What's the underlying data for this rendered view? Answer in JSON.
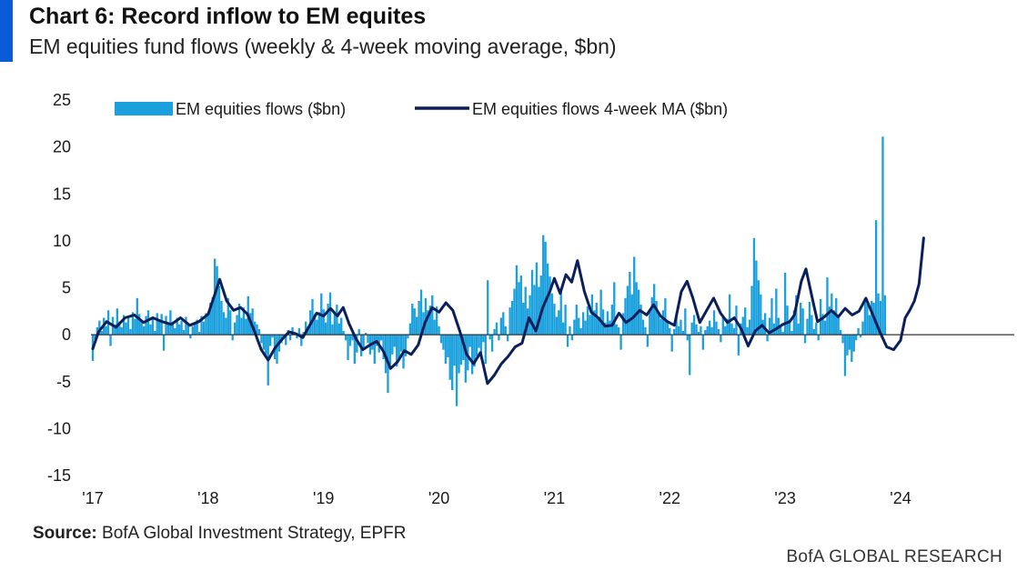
{
  "header": {
    "title": "Chart 6: Record inflow to EM equites",
    "subtitle": "EM equities fund flows (weekly & 4-week moving average, $bn)"
  },
  "footer": {
    "source_label": "Source:",
    "source_text": " BofA Global Investment Strategy, EPFR",
    "brand": "BofA GLOBAL RESEARCH"
  },
  "colors": {
    "accent": "#0a5bd6",
    "bars": "#1aa0dd",
    "line": "#0b1f5c"
  },
  "chart_data": {
    "type": "bar",
    "title": "Chart 6: Record inflow to EM equites",
    "subtitle": "EM equities fund flows (weekly & 4-week moving average, $bn)",
    "ylim": [
      -15,
      25
    ],
    "yticks": [
      25,
      20,
      15,
      10,
      5,
      0,
      -5,
      -10,
      -15
    ],
    "xlim": [
      2017,
      2025
    ],
    "xticks": [
      {
        "value": 2017,
        "label": "'17"
      },
      {
        "value": 2018,
        "label": "'18"
      },
      {
        "value": 2019,
        "label": "'19"
      },
      {
        "value": 2020,
        "label": "'20"
      },
      {
        "value": 2021,
        "label": "'21"
      },
      {
        "value": 2022,
        "label": "'22"
      },
      {
        "value": 2023,
        "label": "'23"
      },
      {
        "value": 2024,
        "label": "'24"
      }
    ],
    "grid": false,
    "legend_position": "top-left",
    "x_start": 2017.0,
    "week_step": 0.01923,
    "series": [
      {
        "name": "EM equities flows ($bn)",
        "kind": "bar",
        "values": [
          -2.8,
          -0.5,
          0.8,
          1.5,
          0.4,
          1.8,
          0.9,
          2.6,
          -1.2,
          1.9,
          1.1,
          2.8,
          1.4,
          0.8,
          2.1,
          1.3,
          1.9,
          0.6,
          2.4,
          1.7,
          3.9,
          2.2,
          1.5,
          0.9,
          2.0,
          2.6,
          1.1,
          1.8,
          0.4,
          2.3,
          1.6,
          2.2,
          -1.7,
          2.0,
          1.2,
          2.6,
          1.4,
          0.7,
          1.8,
          1.1,
          1.5,
          0.5,
          1.9,
          1.2,
          -0.4,
          0.9,
          1.1,
          1.6,
          0.3,
          2.0,
          1.4,
          2.3,
          2.1,
          3.4,
          4.0,
          8.1,
          7.3,
          5.2,
          3.6,
          2.4,
          1.8,
          3.9,
          2.6,
          -0.6,
          1.3,
          2.1,
          3.3,
          1.8,
          2.9,
          1.7,
          4.1,
          2.3,
          2.8,
          1.4,
          1.1,
          0.6,
          -0.9,
          -1.6,
          -2.1,
          -5.4,
          -1.2,
          -0.3,
          -2.6,
          -3.1,
          -1.8,
          -0.9,
          -0.2,
          -1.1,
          0.5,
          -0.6,
          0.8,
          0.2,
          -0.4,
          0.7,
          -1.2,
          0.3,
          1.4,
          0.9,
          2.6,
          3.8,
          2.2,
          1.6,
          2.4,
          4.4,
          2.7,
          1.3,
          3.3,
          4.5,
          1.1,
          2.4,
          3.2,
          1.2,
          1.8,
          0.4,
          -0.6,
          -2.7,
          -1.2,
          -0.6,
          -3.1,
          -1.9,
          0.6,
          -2.3,
          -1.5,
          0.2,
          -0.9,
          -2.1,
          -1.6,
          -3.1,
          -1.2,
          -1.9,
          -0.6,
          -2.6,
          -4.1,
          -6.2,
          -3.2,
          -2.1,
          -1.3,
          -3.4,
          -2.6,
          -1.8,
          -3.6,
          -2.3,
          -0.4,
          1.2,
          3.3,
          2.8,
          1.9,
          3.6,
          4.8,
          2.4,
          3.9,
          2.6,
          3.1,
          4.2,
          1.6,
          3.0,
          0.9,
          -0.9,
          -1.6,
          -3.1,
          -2.4,
          -4.8,
          -5.9,
          -3.3,
          -7.6,
          -4.1,
          -3.2,
          -2.7,
          -5.1,
          -3.8,
          -1.3,
          -4.2,
          -3.4,
          -2.3,
          -1.4,
          -2.6,
          -0.8,
          -3.1,
          5.8,
          -0.5,
          -1.8,
          0.6,
          1.3,
          -0.6,
          1.8,
          2.4,
          0.9,
          -0.7,
          2.9,
          3.6,
          4.9,
          7.4,
          5.6,
          6.3,
          3.4,
          5.1,
          2.8,
          4.2,
          6.9,
          5.3,
          7.7,
          5.1,
          6.3,
          10.6,
          9.9,
          7.6,
          6.2,
          4.4,
          3.3,
          1.9,
          2.6,
          4.9,
          1.3,
          3.2,
          -1.3,
          0.9,
          -0.6,
          1.6,
          3.2,
          1.8,
          0.7,
          2.4,
          1.5,
          3.0,
          2.1,
          4.3,
          2.6,
          3.4,
          1.9,
          4.8,
          2.7,
          1.3,
          2.5,
          1.5,
          3.2,
          5.6,
          1.1,
          0.8,
          -1.6,
          2.3,
          3.9,
          5.2,
          6.7,
          4.3,
          8.3,
          5.6,
          4.8,
          3.2,
          1.6,
          0.8,
          -1.3,
          2.6,
          4.0,
          5.4,
          3.6,
          2.3,
          1.7,
          2.6,
          3.9,
          1.4,
          0.7,
          -1.8,
          0.6,
          2.0,
          0.9,
          1.6,
          0.4,
          2.8,
          -0.6,
          -4.3,
          1.3,
          2.1,
          1.1,
          0.3,
          0.9,
          -1.6,
          0.5,
          0.9,
          1.5,
          0.8,
          2.6,
          1.4,
          0.6,
          -0.8,
          1.9,
          0.9,
          1.7,
          4.3,
          1.2,
          0.7,
          3.1,
          -2.2,
          1.2,
          1.9,
          2.9,
          0.8,
          1.6,
          5.2,
          10.3,
          7.9,
          5.8,
          4.3,
          1.6,
          2.3,
          -0.7,
          1.8,
          3.9,
          1.2,
          4.9,
          1.8,
          0.9,
          0.3,
          6.6,
          3.1,
          1.6,
          0.4,
          2.6,
          4.2,
          1.2,
          3.4,
          2.8,
          -0.9,
          1.7,
          3.5,
          2.1,
          0.6,
          1.3,
          -0.6,
          3.8,
          2.2,
          1.5,
          6.1,
          3.0,
          4.4,
          2.6,
          3.9,
          1.8,
          0.5,
          -0.9,
          -4.4,
          -2.2,
          -1.6,
          -2.9,
          -1.8,
          -0.6,
          0.7,
          -0.3,
          1.4,
          3.9,
          3.4,
          2.1,
          3.6,
          3.4,
          12.2,
          4.4,
          3.6,
          21.1,
          4.2
        ]
      },
      {
        "name": "EM equities flows 4-week MA ($bn)",
        "kind": "line",
        "anchors": [
          [
            2017.0,
            -1.5
          ],
          [
            2017.05,
            0.3
          ],
          [
            2017.12,
            1.4
          ],
          [
            2017.2,
            0.8
          ],
          [
            2017.28,
            1.8
          ],
          [
            2017.36,
            2.1
          ],
          [
            2017.44,
            1.3
          ],
          [
            2017.52,
            1.8
          ],
          [
            2017.6,
            1.4
          ],
          [
            2017.68,
            1.1
          ],
          [
            2017.76,
            1.8
          ],
          [
            2017.84,
            1.0
          ],
          [
            2017.92,
            1.4
          ],
          [
            2018.0,
            2.2
          ],
          [
            2018.06,
            4.4
          ],
          [
            2018.1,
            5.9
          ],
          [
            2018.16,
            3.6
          ],
          [
            2018.22,
            2.6
          ],
          [
            2018.28,
            2.9
          ],
          [
            2018.34,
            2.2
          ],
          [
            2018.4,
            0.4
          ],
          [
            2018.46,
            -1.6
          ],
          [
            2018.52,
            -2.7
          ],
          [
            2018.58,
            -1.4
          ],
          [
            2018.64,
            -0.5
          ],
          [
            2018.7,
            0.3
          ],
          [
            2018.76,
            0.1
          ],
          [
            2018.82,
            -0.3
          ],
          [
            2018.88,
            1.0
          ],
          [
            2018.94,
            2.3
          ],
          [
            2019.0,
            2.0
          ],
          [
            2019.06,
            2.8
          ],
          [
            2019.12,
            2.0
          ],
          [
            2019.17,
            2.9
          ],
          [
            2019.22,
            1.2
          ],
          [
            2019.28,
            -0.4
          ],
          [
            2019.34,
            -1.6
          ],
          [
            2019.4,
            -1.1
          ],
          [
            2019.46,
            -0.7
          ],
          [
            2019.52,
            -1.8
          ],
          [
            2019.58,
            -3.6
          ],
          [
            2019.64,
            -2.9
          ],
          [
            2019.7,
            -1.7
          ],
          [
            2019.76,
            -2.1
          ],
          [
            2019.82,
            -1.1
          ],
          [
            2019.88,
            1.3
          ],
          [
            2019.94,
            2.9
          ],
          [
            2020.0,
            2.4
          ],
          [
            2020.06,
            3.4
          ],
          [
            2020.12,
            2.6
          ],
          [
            2020.18,
            0.4
          ],
          [
            2020.24,
            -2.1
          ],
          [
            2020.3,
            -3.1
          ],
          [
            2020.36,
            -1.9
          ],
          [
            2020.42,
            -5.2
          ],
          [
            2020.48,
            -4.3
          ],
          [
            2020.54,
            -3.1
          ],
          [
            2020.6,
            -2.3
          ],
          [
            2020.66,
            -1.3
          ],
          [
            2020.72,
            -0.9
          ],
          [
            2020.78,
            1.8
          ],
          [
            2020.84,
            0.4
          ],
          [
            2020.9,
            2.9
          ],
          [
            2020.96,
            4.6
          ],
          [
            2021.0,
            6.0
          ],
          [
            2021.05,
            4.4
          ],
          [
            2021.1,
            6.4
          ],
          [
            2021.15,
            5.6
          ],
          [
            2021.2,
            7.9
          ],
          [
            2021.26,
            4.6
          ],
          [
            2021.32,
            2.4
          ],
          [
            2021.38,
            1.8
          ],
          [
            2021.44,
            0.9
          ],
          [
            2021.5,
            1.0
          ],
          [
            2021.56,
            2.3
          ],
          [
            2021.62,
            1.3
          ],
          [
            2021.68,
            1.8
          ],
          [
            2021.74,
            2.6
          ],
          [
            2021.8,
            2.1
          ],
          [
            2021.86,
            3.2
          ],
          [
            2021.92,
            2.0
          ],
          [
            2021.98,
            1.4
          ],
          [
            2022.04,
            1.0
          ],
          [
            2022.1,
            4.6
          ],
          [
            2022.15,
            5.7
          ],
          [
            2022.2,
            3.9
          ],
          [
            2022.26,
            1.3
          ],
          [
            2022.32,
            2.6
          ],
          [
            2022.38,
            3.9
          ],
          [
            2022.44,
            2.3
          ],
          [
            2022.5,
            1.3
          ],
          [
            2022.56,
            1.8
          ],
          [
            2022.62,
            0.6
          ],
          [
            2022.68,
            -1.2
          ],
          [
            2022.74,
            0.4
          ],
          [
            2022.8,
            1.0
          ],
          [
            2022.86,
            0.2
          ],
          [
            2022.92,
            0.6
          ],
          [
            2022.98,
            1.1
          ],
          [
            2023.04,
            1.4
          ],
          [
            2023.08,
            2.1
          ],
          [
            2023.14,
            5.7
          ],
          [
            2023.18,
            7.0
          ],
          [
            2023.24,
            3.6
          ],
          [
            2023.28,
            1.4
          ],
          [
            2023.34,
            1.9
          ],
          [
            2023.4,
            2.6
          ],
          [
            2023.46,
            1.9
          ],
          [
            2023.52,
            2.8
          ],
          [
            2023.58,
            2.1
          ],
          [
            2023.64,
            2.5
          ],
          [
            2023.7,
            3.9
          ],
          [
            2023.76,
            2.1
          ],
          [
            2023.82,
            0.3
          ],
          [
            2023.88,
            -1.3
          ],
          [
            2023.94,
            -1.6
          ],
          [
            2024.0,
            -0.6
          ],
          [
            2024.04,
            1.8
          ],
          [
            2024.08,
            2.6
          ],
          [
            2024.12,
            3.6
          ],
          [
            2024.16,
            5.4
          ],
          [
            2024.2,
            10.3
          ]
        ]
      }
    ]
  }
}
